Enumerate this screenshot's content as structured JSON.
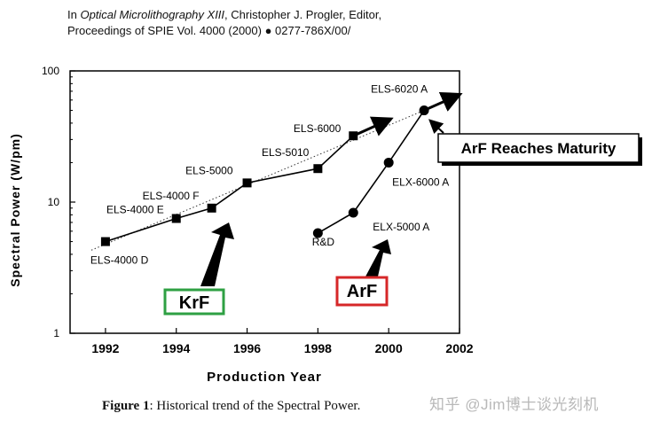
{
  "header": {
    "line1_prefix": "In ",
    "line1_title": "Optical Microlithography XIII",
    "line1_suffix": ", Christopher J. Progler, Editor,",
    "line2": "Proceedings of SPIE Vol. 4000 (2000) ● 0277-786X/00/"
  },
  "caption": {
    "label": "Figure 1",
    "text": ": Historical trend of the Spectral Power."
  },
  "watermark": "知乎 @Jim博士谈光刻机",
  "chart_data": {
    "type": "line",
    "xlabel": "Production Year",
    "ylabel": "Spectral Power (W/pm)",
    "xlim": [
      1991,
      2002
    ],
    "ylim": [
      1,
      100
    ],
    "yscale": "log",
    "xticks": [
      1992,
      1994,
      1996,
      1998,
      2000,
      2002
    ],
    "yticks": [
      1,
      10,
      100
    ],
    "grid": false,
    "series": [
      {
        "marker": "square",
        "color": "#000000",
        "points": [
          {
            "x": 1992,
            "y": 5,
            "label": "ELS-4000 D"
          },
          {
            "x": 1994,
            "y": 7.5,
            "label": "ELS-4000 E"
          },
          {
            "x": 1995,
            "y": 9,
            "label": "ELS-4000 F"
          },
          {
            "x": 1996,
            "y": 14,
            "label": "ELS-5000"
          },
          {
            "x": 1998,
            "y": 18,
            "label": "ELS-5010"
          },
          {
            "x": 1999,
            "y": 32,
            "label": "ELS-6000"
          }
        ]
      },
      {
        "marker": "circle",
        "color": "#000000",
        "points": [
          {
            "x": 1998,
            "y": 5.8,
            "label": "R&D"
          },
          {
            "x": 1999,
            "y": 8.3,
            "label": "ELX-5000 A"
          },
          {
            "x": 2000,
            "y": 20,
            "label": "ELX-6000 A"
          },
          {
            "x": 2001,
            "y": 50,
            "label": "ELS-6020 A"
          }
        ]
      }
    ],
    "trend_line": {
      "style": "dotted",
      "from": {
        "x": 1991.6,
        "y": 4.3
      },
      "to": {
        "x": 2001,
        "y": 50
      }
    },
    "annotations": {
      "krf": {
        "text": "KrF",
        "border_color": "#2ea043"
      },
      "arf": {
        "text": "ArF",
        "border_color": "#d62728"
      },
      "maturity": {
        "text": "ArF Reaches Maturity"
      }
    }
  }
}
